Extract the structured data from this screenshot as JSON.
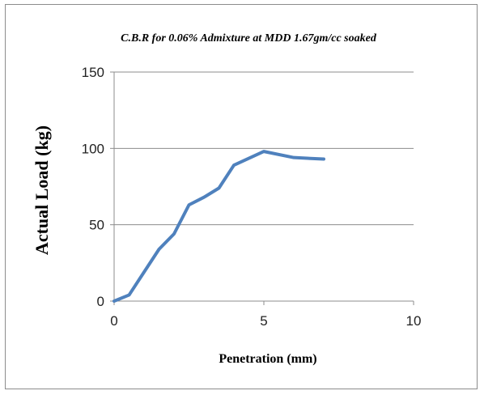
{
  "chart_data": {
    "type": "line",
    "title": "C.B.R for 0.06% Admixture at MDD 1.67gm/cc soaked",
    "xlabel": "Penetration (mm)",
    "ylabel": "Actual Load (kg)",
    "xlim": [
      0,
      10
    ],
    "ylim": [
      0,
      150
    ],
    "xticks": [
      0,
      5,
      10
    ],
    "yticks": [
      0,
      50,
      100,
      150
    ],
    "grid": "horizontal",
    "legend": "none",
    "series": [
      {
        "color": "#4f81bd",
        "x": [
          0,
          0.5,
          1.0,
          1.5,
          2.0,
          2.5,
          3.0,
          3.5,
          4.0,
          5.0,
          6.0,
          7.0
        ],
        "y": [
          0,
          4,
          19,
          34,
          44,
          63,
          68,
          74,
          89,
          98,
          94,
          93
        ]
      }
    ]
  }
}
